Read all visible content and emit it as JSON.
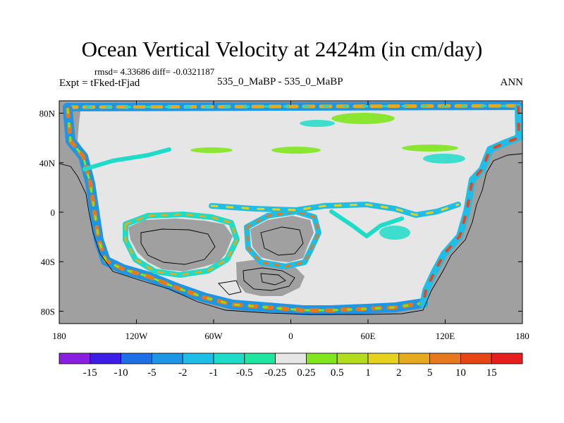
{
  "header": {
    "title": "Ocean Vertical Velocity at 2424m (in cm/day)",
    "stats": "rmsd= 4.33686 diff= -0.0321187",
    "experiment": "Expt = tFked-tFjad",
    "runs": "535_0_MaBP - 535_0_MaBP",
    "season": "ANN"
  },
  "map": {
    "projection": "cylindrical equidistant",
    "lon_range": [
      -180,
      180
    ],
    "lat_range": [
      -90,
      90
    ],
    "lon_ticks": [
      {
        "value": -180,
        "label": "180"
      },
      {
        "value": -120,
        "label": "120W"
      },
      {
        "value": -60,
        "label": "60W"
      },
      {
        "value": 0,
        "label": "0"
      },
      {
        "value": 60,
        "label": "60E"
      },
      {
        "value": 120,
        "label": "120E"
      },
      {
        "value": 180,
        "label": "180"
      }
    ],
    "lat_ticks": [
      {
        "value": 80,
        "label": "80N"
      },
      {
        "value": 40,
        "label": "40N"
      },
      {
        "value": 0,
        "label": "0"
      },
      {
        "value": -40,
        "label": "40S"
      },
      {
        "value": -80,
        "label": "80S"
      }
    ],
    "land_color": "#a0a0a0",
    "near_zero_color": "#e6e6e6"
  },
  "colorbar": {
    "labels": [
      "-15",
      "-10",
      "-5",
      "-2",
      "-1",
      "-0.5",
      "-0.25",
      "0.25",
      "0.5",
      "1",
      "2",
      "5",
      "10",
      "15"
    ],
    "colors": [
      "#8a1ee0",
      "#3c1ee6",
      "#1e6ee6",
      "#1e96e6",
      "#1ebee6",
      "#1edcc8",
      "#1ee6a0",
      "#e6e6e6",
      "#82e61e",
      "#b4dc1e",
      "#e6d21e",
      "#e6aa1e",
      "#e6781e",
      "#e64614",
      "#e61e1e"
    ]
  }
}
